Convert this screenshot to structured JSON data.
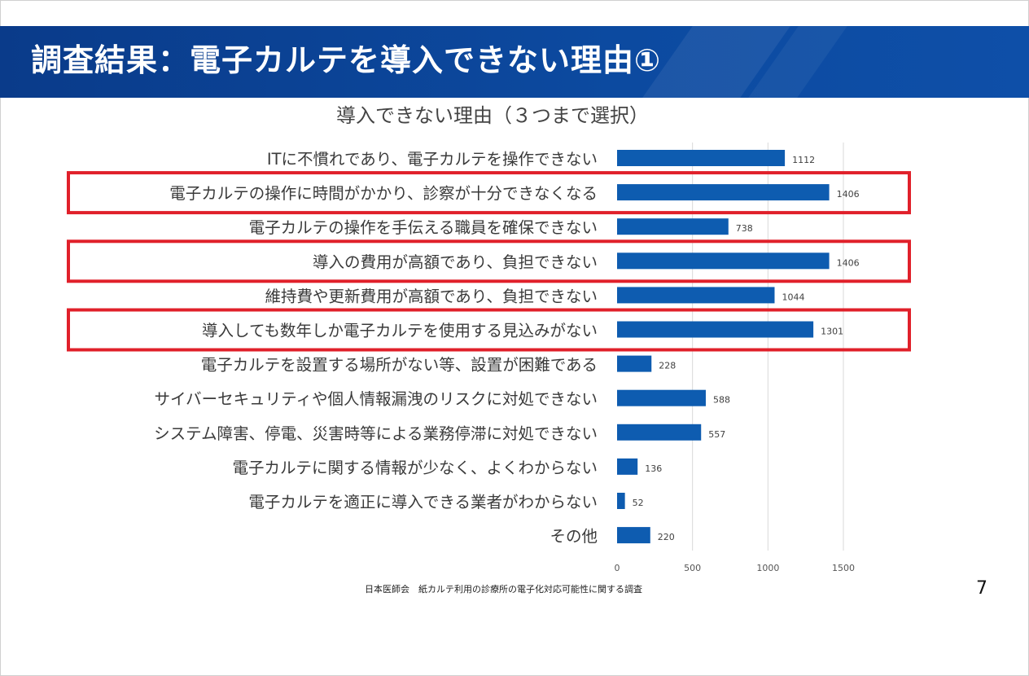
{
  "header": {
    "title": "調査結果：電子カルテを導入できない理由①"
  },
  "chart_data": {
    "type": "bar",
    "orientation": "horizontal",
    "title": "導入できない理由（３つまで選択）",
    "categories": [
      "ITに不慣れであり、電子カルテを操作できない",
      "電子カルテの操作に時間がかかり、診察が十分できなくなる",
      "電子カルテの操作を手伝える職員を確保できない",
      "導入の費用が高額であり、負担できない",
      "維持費や更新費用が高額であり、負担できない",
      "導入しても数年しか電子カルテを使用する見込みがない",
      "電子カルテを設置する場所がない等、設置が困難である",
      "サイバーセキュリティや個人情報漏洩のリスクに対処できない",
      "システム障害、停電、災害時等による業務停滞に対処できない",
      "電子カルテに関する情報が少なく、よくわからない",
      "電子カルテを適正に導入できる業者がわからない",
      "その他"
    ],
    "values": [
      1112,
      1406,
      738,
      1406,
      1044,
      1301,
      228,
      588,
      557,
      136,
      52,
      220
    ],
    "data_labels": [
      "1112",
      "1406",
      "738",
      "1406",
      "1044",
      "1301",
      "228",
      "588",
      "557",
      "136",
      "52",
      "220"
    ],
    "highlighted": [
      false,
      true,
      false,
      true,
      false,
      true,
      false,
      false,
      false,
      false,
      false,
      false
    ],
    "xlim": [
      0,
      1700
    ],
    "xticks": [
      0,
      500,
      1000,
      1500
    ],
    "xtick_labels": [
      "0",
      "500",
      "1000",
      "1500"
    ],
    "grid": true,
    "bar_color": "#0e5cb0",
    "highlight_color": "#e0202a"
  },
  "footer": {
    "source": "日本医師会　紙カルテ利用の診療所の電子化対応可能性に関する調査",
    "page_number": "7"
  }
}
